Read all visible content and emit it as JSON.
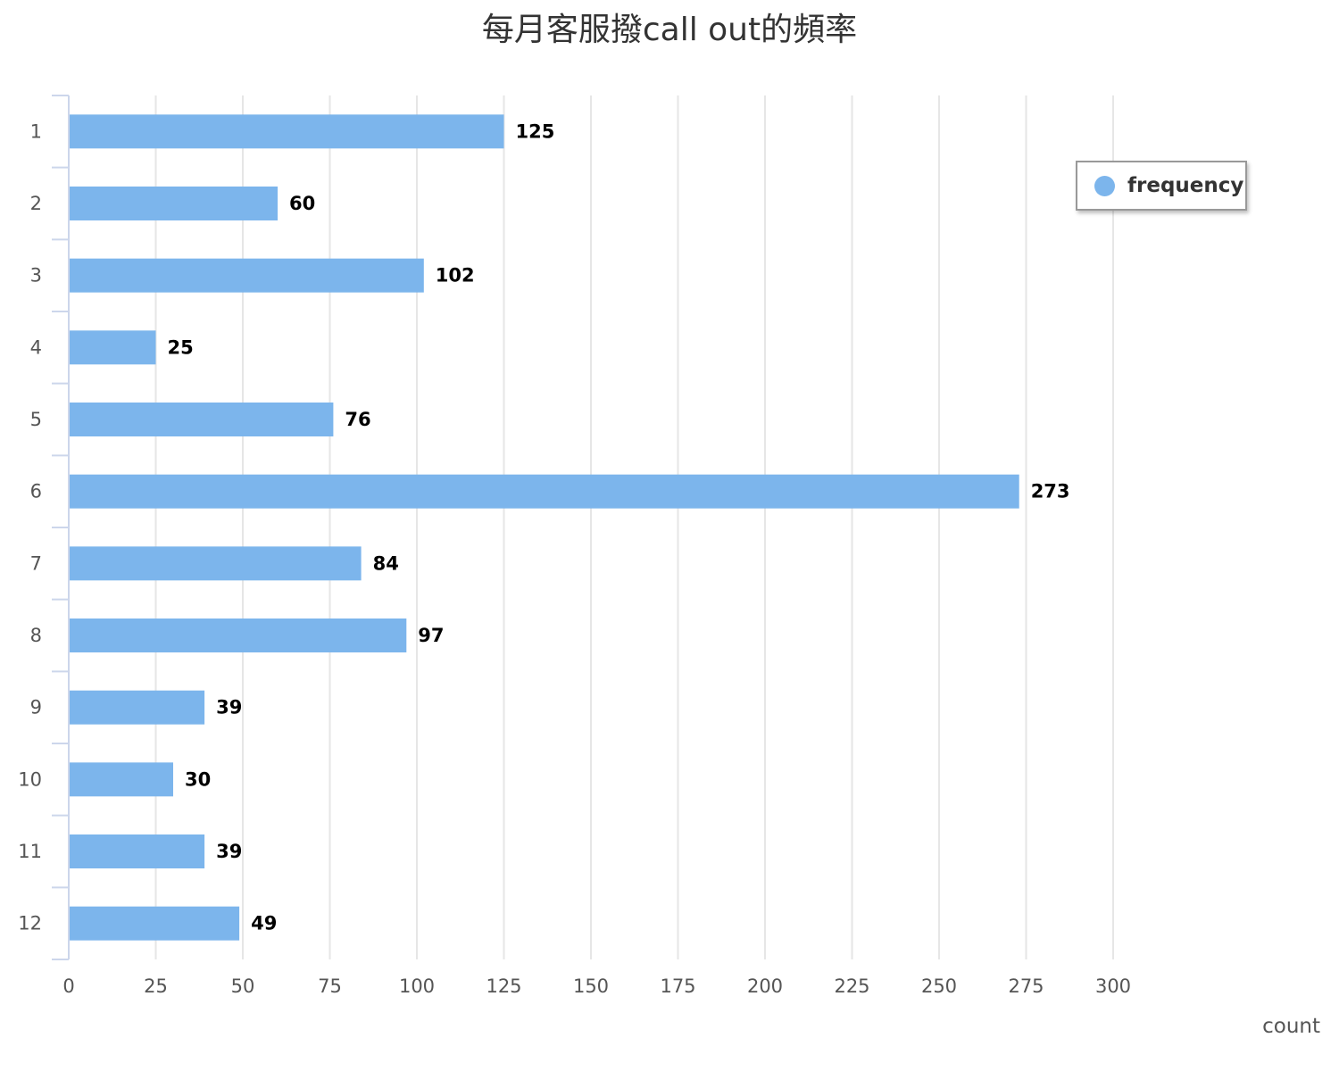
{
  "title": "每月客服撥call out的頻率",
  "colors": {
    "bar": "#7cb5ec",
    "grid": "#e6e6e6",
    "axis": "#ccd6eb"
  },
  "legend": {
    "label": "frequency"
  },
  "chart_data": {
    "type": "bar",
    "orientation": "horizontal",
    "title": "每月客服撥call out的頻率",
    "categories": [
      "1",
      "2",
      "3",
      "4",
      "5",
      "6",
      "7",
      "8",
      "9",
      "10",
      "11",
      "12"
    ],
    "series": [
      {
        "name": "frequency",
        "values": [
          125,
          60,
          102,
          25,
          76,
          273,
          84,
          97,
          39,
          30,
          39,
          49
        ]
      }
    ],
    "xlabel": "count",
    "ylabel": "",
    "xlim": [
      0,
      300
    ],
    "xticks": [
      "0",
      "25",
      "50",
      "75",
      "100",
      "125",
      "150",
      "175",
      "200",
      "225",
      "250",
      "275",
      "300"
    ],
    "grid": true,
    "legend_position": "top-right",
    "data_labels": true
  }
}
